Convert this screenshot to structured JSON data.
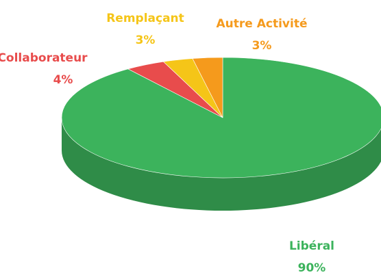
{
  "chart_data": {
    "type": "pie",
    "categories": [
      "Libéral",
      "Collaborateur",
      "Remplaçant",
      "Autre Activité"
    ],
    "values": [
      90,
      4,
      3,
      3
    ],
    "value_labels": [
      "90%",
      "4%",
      "3%",
      "3%"
    ],
    "colors": [
      "#3cb35c",
      "#e84c4c",
      "#f5c518",
      "#f59a1c"
    ]
  }
}
